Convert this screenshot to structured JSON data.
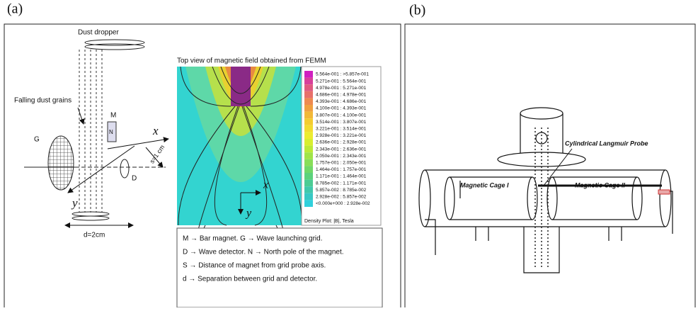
{
  "panel_a": {
    "label": "(a)",
    "setup": {
      "dropper": "Dust dropper",
      "falling": "Falling dust grains",
      "magnet": "M",
      "north": "N",
      "grid": "G",
      "detector": "D",
      "x_axis": "x",
      "y_axis": "y",
      "s": "s=1 cm",
      "d": "d=2cm"
    },
    "femm": {
      "title": "Top view of magnetic field obtained from FEMM",
      "x_axis": "x",
      "y_axis": "y",
      "caption": "Density Plot: |B|, Tesla",
      "scale": [
        "5.564e-001 : >5.857e-001",
        "5.271e-001 : 5.564e-001",
        "4.978e-001 : 5.271e-001",
        "4.686e-001 : 4.978e-001",
        "4.393e-001 : 4.686e-001",
        "4.100e-001 : 4.393e-001",
        "3.807e-001 : 4.100e-001",
        "3.514e-001 : 3.807e-001",
        "3.221e-001 : 3.514e-001",
        "2.928e-001 : 3.221e-001",
        "2.636e-001 : 2.928e-001",
        "2.343e-001 : 2.636e-001",
        "2.050e-001 : 2.343e-001",
        "1.757e-001 : 2.050e-001",
        "1.464e-001 : 1.757e-001",
        "1.171e-001 : 1.464e-001",
        "8.785e-002 : 1.171e-001",
        "5.857e-002 : 8.785e-002",
        "2.928e-002 : 5.857e-002",
        "<0.000e+000 : 2.928e-002"
      ]
    },
    "legend": [
      "M → Bar magnet.   G → Wave launching grid.",
      "D → Wave detector.   N → North pole of the magnet.",
      "S → Distance of magnet from grid probe axis.",
      "d → Separation between grid and detector."
    ]
  },
  "panel_b": {
    "label": "(b)",
    "probe": "Cylindrical Langmuir Probe",
    "cage_1": "Magnetic Cage I",
    "cage_2": "Magnetic Cage II"
  }
}
